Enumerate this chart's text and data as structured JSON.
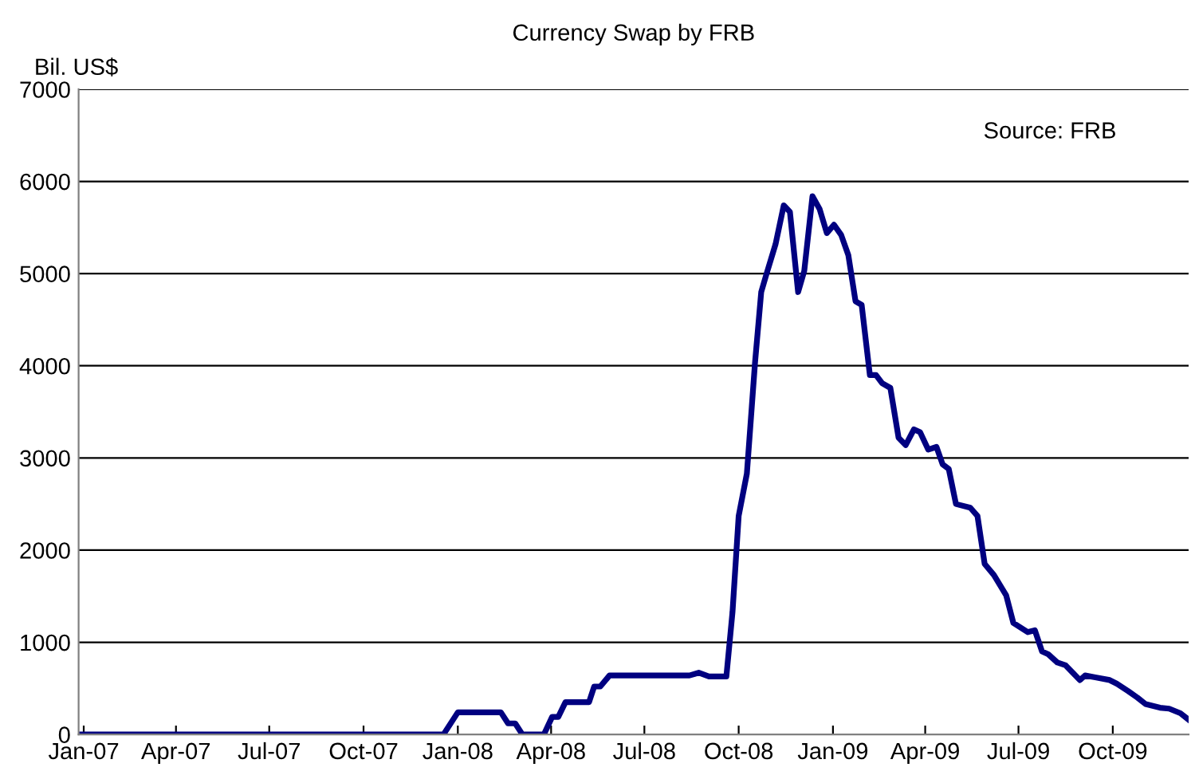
{
  "chart_data": {
    "type": "line",
    "title": "Currency Swap by FRB",
    "ylabel": "Bil. US$",
    "annotations": [
      "Source: FRB"
    ],
    "x": [
      "2006-12-27",
      "2007-12-18",
      "2008-01-01",
      "2008-02-12",
      "2008-02-19",
      "2008-02-26",
      "2008-03-04",
      "2008-03-25",
      "2008-04-02",
      "2008-04-08",
      "2008-04-15",
      "2008-05-08",
      "2008-05-13",
      "2008-05-19",
      "2008-05-28",
      "2008-08-14",
      "2008-08-23",
      "2008-09-02",
      "2008-09-19",
      "2008-09-25",
      "2008-10-01",
      "2008-10-09",
      "2008-10-17",
      "2008-10-23",
      "2008-10-28",
      "2008-11-06",
      "2008-11-14",
      "2008-11-20",
      "2008-11-28",
      "2008-12-04",
      "2008-12-12",
      "2008-12-19",
      "2008-12-26",
      "2009-01-02",
      "2009-01-09",
      "2009-01-16",
      "2009-01-23",
      "2009-01-29",
      "2009-02-06",
      "2009-02-12",
      "2009-02-18",
      "2009-02-26",
      "2009-03-06",
      "2009-03-13",
      "2009-03-21",
      "2009-03-27",
      "2009-04-04",
      "2009-04-12",
      "2009-04-18",
      "2009-04-24",
      "2009-05-01",
      "2009-05-15",
      "2009-05-22",
      "2009-05-29",
      "2009-06-07",
      "2009-06-19",
      "2009-06-26",
      "2009-07-10",
      "2009-07-17",
      "2009-07-24",
      "2009-07-30",
      "2009-08-08",
      "2009-08-16",
      "2009-08-30",
      "2009-09-04",
      "2009-09-14",
      "2009-09-28",
      "2009-10-05",
      "2009-10-16",
      "2009-10-25",
      "2009-11-02",
      "2009-11-16",
      "2009-11-25",
      "2009-12-06",
      "2009-12-14"
    ],
    "series": [
      {
        "color": "#000080",
        "values": [
          0,
          0,
          240,
          240,
          120,
          120,
          0,
          0,
          190,
          190,
          350,
          350,
          520,
          520,
          640,
          640,
          670,
          630,
          630,
          1330,
          2370,
          2830,
          4040,
          4800,
          4990,
          5320,
          5740,
          5670,
          4800,
          5030,
          5840,
          5700,
          5440,
          5530,
          5420,
          5200,
          4700,
          4660,
          3900,
          3900,
          3810,
          3760,
          3220,
          3140,
          3310,
          3280,
          3090,
          3120,
          2930,
          2880,
          2500,
          2460,
          2370,
          1850,
          1730,
          1510,
          1210,
          1110,
          1130,
          900,
          870,
          780,
          750,
          590,
          640,
          620,
          590,
          550,
          470,
          400,
          330,
          290,
          280,
          230,
          160
        ]
      }
    ],
    "xlim": [
      "2006-12-27",
      "2009-12-14"
    ],
    "xticks": [
      {
        "value": "2007-01-01",
        "label": "Jan-07"
      },
      {
        "value": "2007-04-01",
        "label": "Apr-07"
      },
      {
        "value": "2007-07-01",
        "label": "Jul-07"
      },
      {
        "value": "2007-10-01",
        "label": "Oct-07"
      },
      {
        "value": "2008-01-01",
        "label": "Jan-08"
      },
      {
        "value": "2008-04-01",
        "label": "Apr-08"
      },
      {
        "value": "2008-07-01",
        "label": "Jul-08"
      },
      {
        "value": "2008-10-01",
        "label": "Oct-08"
      },
      {
        "value": "2009-01-01",
        "label": "Jan-09"
      },
      {
        "value": "2009-04-01",
        "label": "Apr-09"
      },
      {
        "value": "2009-07-01",
        "label": "Jul-09"
      },
      {
        "value": "2009-10-01",
        "label": "Oct-09"
      }
    ],
    "ylim": [
      0,
      7000
    ],
    "yticks": [
      0,
      1000,
      2000,
      3000,
      4000,
      5000,
      6000,
      7000
    ],
    "grid": "y",
    "marker": "none",
    "line_style": "solid"
  }
}
